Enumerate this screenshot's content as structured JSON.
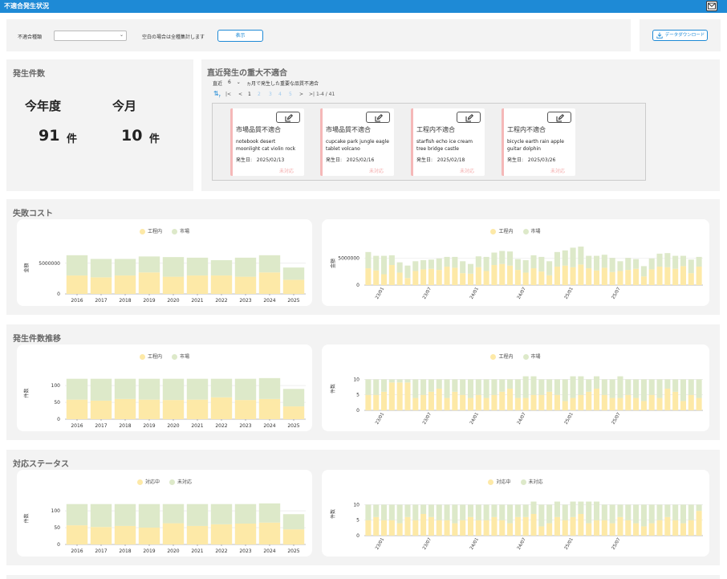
{
  "app": {
    "title": "不適合発生状況"
  },
  "filter": {
    "type_label": "不適合種類",
    "type_value": "",
    "note": "空白の場合は全種集計します",
    "show_button": "表示",
    "download_button": "データダウンロード"
  },
  "counts": {
    "title": "発生件数",
    "this_year_label": "今年度",
    "this_month_label": "今月",
    "this_year_value": "91",
    "this_month_value": "10",
    "unit": "件"
  },
  "recent": {
    "title": "直近発生の重大不適合",
    "months_prefix": "直近",
    "months_value": "6",
    "months_suffix": "ヵ月で発生した重要な品質不適合",
    "pager": {
      "first": "|<",
      "prev": "<",
      "pages": [
        "1",
        "2",
        "3",
        "4",
        "5"
      ],
      "next": ">",
      "last": ">|",
      "range": "1-4 / 41"
    },
    "cards": [
      {
        "title": "市場品質不適合",
        "text": "notebook desert moonlight cat violin rock",
        "date_label": "発生日:",
        "date": "2025/02/13",
        "status": "未対応"
      },
      {
        "title": "市場品質不適合",
        "text": "cupcake park jungle eagle tablet volcano",
        "date_label": "発生日:",
        "date": "2025/02/16",
        "status": "未対応"
      },
      {
        "title": "工程内不適合",
        "text": "starfish echo ice cream tree bridge castle",
        "date_label": "発生日:",
        "date": "2025/02/18",
        "status": "未対応"
      },
      {
        "title": "工程内不適合",
        "text": "bicycle earth rain apple guitar dolphin",
        "date_label": "発生日:",
        "date": "2025/03/26",
        "status": "未対応"
      }
    ]
  },
  "sections": [
    {
      "title": "失敗コスト"
    },
    {
      "title": "発生件数推移"
    },
    {
      "title": "対応ステータス"
    }
  ],
  "colors": {
    "yellow": "#fde9a7",
    "green": "#dde9c9",
    "accent": "#1e8ad6",
    "red_border": "#f5b8b8"
  },
  "chart_data": [
    {
      "type": "bar",
      "stacked": true,
      "categories": [
        "2016",
        "2017",
        "2018",
        "2019",
        "2020",
        "2021",
        "2022",
        "2023",
        "2024",
        "2025"
      ],
      "series": [
        {
          "name": "工程内",
          "values": [
            3000000,
            2700000,
            3000000,
            3500000,
            2800000,
            3000000,
            3000000,
            2800000,
            3500000,
            2300000
          ]
        },
        {
          "name": "市場",
          "values": [
            3300000,
            3000000,
            2700000,
            2600000,
            3200000,
            2900000,
            2500000,
            3100000,
            2800000,
            2000000
          ]
        }
      ],
      "ylabel": "金額",
      "yticks": [
        "0",
        "5000000"
      ],
      "ylim": [
        0,
        8500000
      ]
    },
    {
      "type": "bar",
      "stacked": true,
      "x_labels": [
        "23/01",
        "23/07",
        "24/01",
        "24/07",
        "25/01",
        "25/07"
      ],
      "series": [
        {
          "name": "工程内",
          "values": [
            3100000,
            2700000,
            2000000,
            3700000,
            2300000,
            1300000,
            2600000,
            2900000,
            3000000,
            2800000,
            3400000,
            3200000,
            2200000,
            2100000,
            3300000,
            2600000,
            3700000,
            3900000,
            3600000,
            2800000,
            2300000,
            3100000,
            2500000,
            1800000,
            3400000,
            3600000,
            3300000,
            3800000,
            3100000,
            2700000,
            3200000,
            2400000,
            2600000,
            2800000,
            3000000,
            1600000,
            2900000,
            3400000,
            3300000,
            3000000,
            3500000,
            2200000,
            3400000
          ]
        },
        {
          "name": "市場",
          "values": [
            3000000,
            2700000,
            3400000,
            1800000,
            1900000,
            2300000,
            1800000,
            1700000,
            1700000,
            2100000,
            1800000,
            2000000,
            2200000,
            1800000,
            2000000,
            2600000,
            2300000,
            2400000,
            2600000,
            2000000,
            2300000,
            2400000,
            2700000,
            2600000,
            2700000,
            2800000,
            3600000,
            3300000,
            2300000,
            2700000,
            2400000,
            2600000,
            1800000,
            2200000,
            1800000,
            1900000,
            2000000,
            2400000,
            2600000,
            2400000,
            1900000,
            2500000,
            1800000
          ]
        }
      ],
      "ylabel": "金額",
      "yticks": [
        "0",
        "5000000"
      ],
      "ylim": [
        0,
        8000000
      ]
    },
    {
      "type": "bar",
      "stacked": true,
      "categories": [
        "2016",
        "2017",
        "2018",
        "2019",
        "2020",
        "2021",
        "2022",
        "2023",
        "2024",
        "2025"
      ],
      "series": [
        {
          "name": "工程内",
          "values": [
            58,
            55,
            60,
            58,
            57,
            58,
            65,
            57,
            60,
            38
          ]
        },
        {
          "name": "市場",
          "values": [
            62,
            65,
            60,
            62,
            63,
            62,
            55,
            63,
            62,
            52
          ]
        }
      ],
      "ylabel": "件数",
      "yticks": [
        "0",
        "50",
        "100"
      ],
      "ylim": [
        0,
        155
      ]
    },
    {
      "type": "bar",
      "stacked": true,
      "x_labels": [
        "23/01",
        "23/07",
        "24/01",
        "24/07",
        "25/01",
        "25/07"
      ],
      "series": [
        {
          "name": "工程内",
          "values": [
            5,
            5,
            6,
            9,
            9,
            9,
            4,
            5,
            6,
            7,
            4,
            6,
            5,
            4,
            5,
            4,
            5,
            6,
            7,
            4,
            4,
            5,
            5,
            6,
            5,
            3,
            4,
            5,
            6,
            7,
            5,
            4,
            4,
            5,
            4,
            3,
            5,
            4,
            7,
            6,
            3,
            5,
            4
          ]
        },
        {
          "name": "市場",
          "values": [
            5,
            5,
            4,
            1,
            1,
            1,
            6,
            5,
            4,
            3,
            6,
            4,
            5,
            6,
            5,
            6,
            5,
            4,
            3,
            6,
            7,
            6,
            5,
            4,
            5,
            7,
            7,
            6,
            4,
            4,
            5,
            6,
            7,
            5,
            6,
            7,
            5,
            6,
            3,
            4,
            7,
            5,
            6
          ]
        }
      ],
      "ylabel": "件数",
      "yticks": [
        "0",
        "5",
        "10"
      ],
      "ylim": [
        0,
        14
      ]
    },
    {
      "type": "bar",
      "stacked": true,
      "categories": [
        "2016",
        "2017",
        "2018",
        "2019",
        "2020",
        "2021",
        "2022",
        "2023",
        "2024",
        "2025"
      ],
      "series": [
        {
          "name": "対応中",
          "values": [
            57,
            52,
            55,
            50,
            63,
            55,
            60,
            62,
            65,
            45
          ]
        },
        {
          "name": "未対応",
          "values": [
            63,
            68,
            65,
            70,
            57,
            65,
            60,
            58,
            57,
            45
          ]
        }
      ],
      "ylabel": "件数",
      "yticks": [
        "0",
        "50",
        "100"
      ],
      "ylim": [
        0,
        155
      ]
    },
    {
      "type": "bar",
      "stacked": true,
      "x_labels": [
        "23/01",
        "23/07",
        "24/01",
        "24/07",
        "25/01",
        "25/07"
      ],
      "series": [
        {
          "name": "対応中",
          "values": [
            5,
            6,
            5,
            5,
            4,
            6,
            5,
            7,
            6,
            5,
            5,
            4,
            5,
            6,
            5,
            5,
            6,
            5,
            4,
            6,
            6,
            7,
            3,
            4,
            6,
            5,
            6,
            7,
            4,
            5,
            5,
            4,
            6,
            5,
            4,
            3,
            4,
            5,
            6,
            5,
            4,
            5,
            8
          ]
        },
        {
          "name": "未対応",
          "values": [
            5,
            4,
            5,
            5,
            6,
            4,
            5,
            3,
            4,
            5,
            5,
            6,
            5,
            4,
            5,
            5,
            4,
            5,
            6,
            4,
            4,
            4,
            7,
            6,
            5,
            5,
            5,
            4,
            7,
            6,
            5,
            6,
            4,
            5,
            6,
            7,
            6,
            5,
            4,
            5,
            6,
            5,
            2
          ]
        }
      ],
      "ylabel": "件数",
      "yticks": [
        "0",
        "5",
        "10"
      ],
      "ylim": [
        0,
        14
      ]
    }
  ]
}
